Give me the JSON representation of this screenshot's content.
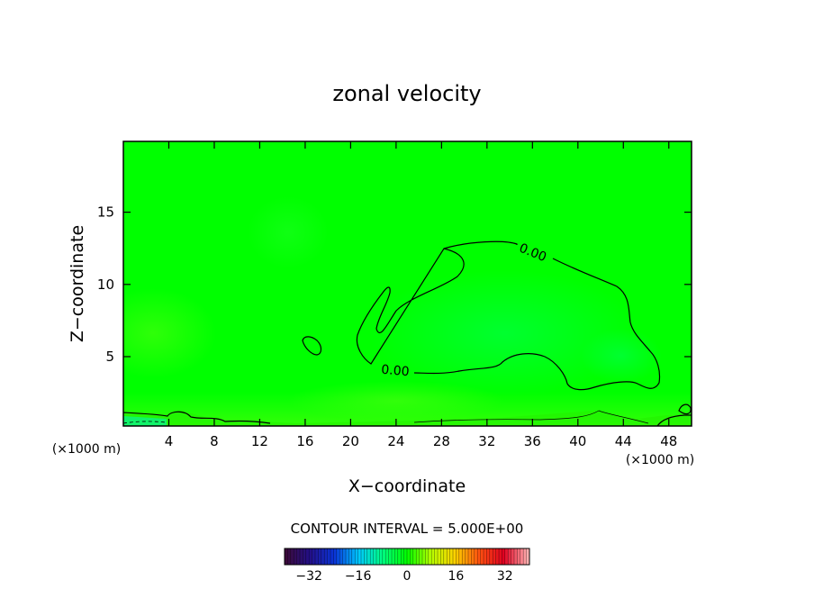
{
  "chart_data": {
    "type": "heatmap",
    "title": "zonal velocity",
    "xlabel": "X−coordinate",
    "ylabel": "Z−coordinate",
    "x_unit_left": "(×1000 m)",
    "x_unit_right": "(×1000 m)",
    "xlim": [
      0,
      50
    ],
    "ylim": [
      0.2,
      19.9
    ],
    "x_ticks": [
      4,
      8,
      12,
      16,
      20,
      24,
      28,
      32,
      36,
      40,
      44,
      48
    ],
    "y_ticks": [
      5,
      10,
      15
    ],
    "field_min": -40,
    "field_max": 40,
    "field_background_value": 2,
    "contour_interval_label": "CONTOUR INTERVAL = 5.000E+00",
    "contour_labels": [
      "0.00",
      "0.00"
    ],
    "colorbar": {
      "min": -40,
      "max": 40,
      "ticks": [
        -32,
        -16,
        0,
        16,
        32
      ],
      "tick_labels": [
        "−32",
        "−16",
        "0",
        "16",
        "32"
      ],
      "colors": [
        "#3b0a3b",
        "#22108a",
        "#0a34d8",
        "#00c8ff",
        "#00ff80",
        "#00ff00",
        "#b8ff00",
        "#ffd000",
        "#ff5010",
        "#e00020",
        "#ffb0b0"
      ]
    }
  }
}
